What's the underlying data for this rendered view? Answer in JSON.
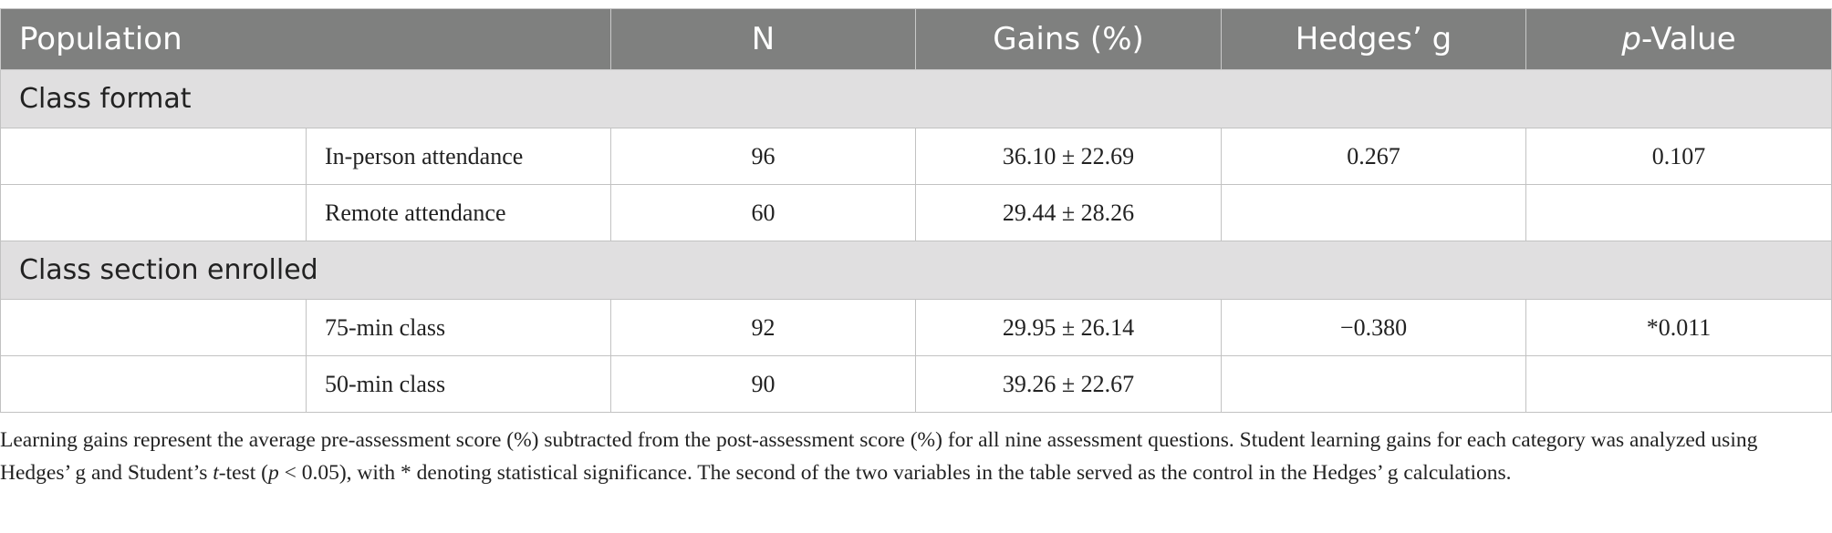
{
  "table": {
    "headers": {
      "population": "Population",
      "n": "N",
      "gains": "Gains (%)",
      "hedges": "Hedges’ g",
      "p_italic": "p",
      "p_rest": "-Value"
    },
    "sections": [
      {
        "title": "Class format",
        "rows": [
          {
            "label": "In-person attendance",
            "n": "96",
            "gains": "36.10 ± 22.69",
            "hedges": "0.267",
            "p": "0.107"
          },
          {
            "label": "Remote attendance",
            "n": "60",
            "gains": "29.44 ± 28.26",
            "hedges": "",
            "p": ""
          }
        ]
      },
      {
        "title": "Class section enrolled",
        "rows": [
          {
            "label": "75-min class",
            "n": "92",
            "gains": "29.95 ± 26.14",
            "hedges": "−0.380",
            "p": "*0.011"
          },
          {
            "label": "50-min class",
            "n": "90",
            "gains": "39.26 ± 22.67",
            "hedges": "",
            "p": ""
          }
        ]
      }
    ]
  },
  "caption": {
    "part1": "Learning gains represent the average pre-assessment score (%) subtracted from the post-assessment score (%) for all nine assessment questions. Student learning gains for each category was analyzed using Hedges’ g and Student’s ",
    "t_italic": "t",
    "part2": "-test (",
    "p_italic": "p",
    "part3": " < 0.05), with * denoting statistical significance. The second of the two variables in the table served as the control in the Hedges’ g calculations."
  }
}
